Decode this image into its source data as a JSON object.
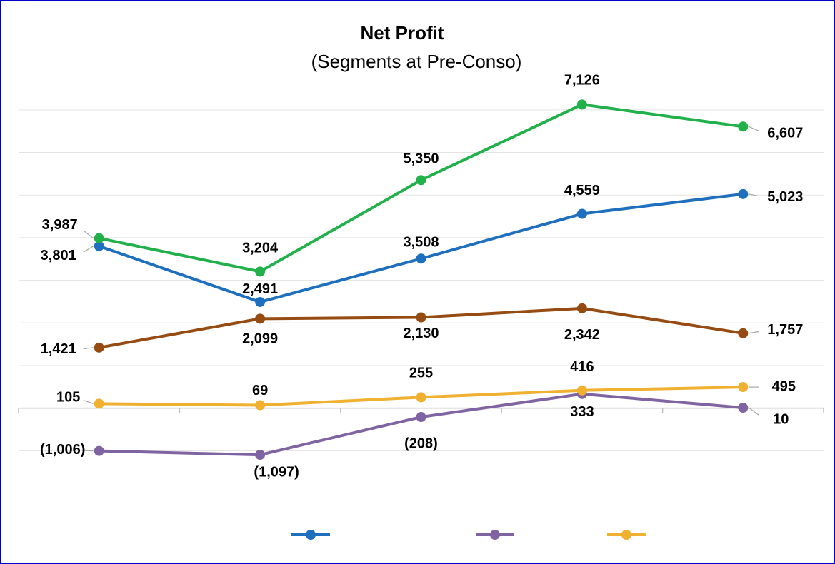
{
  "chart_data": {
    "type": "line",
    "title": "Net Profit",
    "subtitle": "(Segments at Pre-Conso)",
    "categories": [
      null,
      null,
      null,
      null,
      null
    ],
    "ylim": [
      -2000,
      7500
    ],
    "yticks": [
      -1000,
      0,
      1000,
      2000,
      3000,
      4000,
      5000,
      6000,
      7000
    ],
    "grid": true,
    "legend_position": "bottom",
    "series": [
      {
        "color": "#1f6fbf",
        "legend": true,
        "values": [
          3801,
          2491,
          3508,
          4559,
          5023
        ],
        "value_labels": [
          "3,801",
          "2,491",
          "3,508",
          "4,559",
          "5,023"
        ]
      },
      {
        "color": "#8064a2",
        "legend": true,
        "values": [
          -1006,
          -1097,
          -208,
          333,
          10
        ],
        "value_labels": [
          "(1,006)",
          "(1,097)",
          "(208)",
          "333",
          "10"
        ]
      },
      {
        "color": "#f0b030",
        "legend": true,
        "values": [
          105,
          69,
          255,
          416,
          495
        ],
        "value_labels": [
          "105",
          "69",
          "255",
          "416",
          "495"
        ]
      },
      {
        "color": "#22b04b",
        "legend": false,
        "values": [
          3987,
          3204,
          5350,
          7126,
          6607
        ],
        "value_labels": [
          "3,987",
          "3,204",
          "5,350",
          "7,126",
          "6,607"
        ]
      },
      {
        "color": "#954b12",
        "legend": false,
        "values": [
          1421,
          2099,
          2130,
          2342,
          1757
        ],
        "value_labels": [
          "1,421",
          "2,099",
          "2,130",
          "2,342",
          "1,757"
        ]
      }
    ]
  }
}
